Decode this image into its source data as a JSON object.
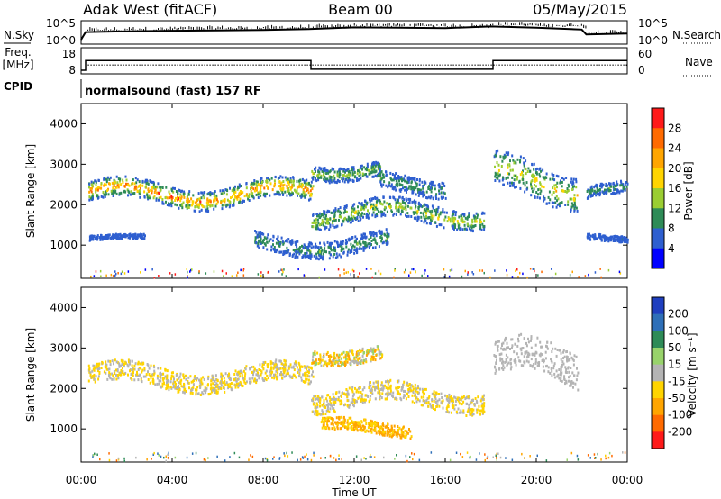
{
  "header": {
    "station": "Adak West (fitACF)",
    "beam": "Beam 00",
    "date": "05/May/2015"
  },
  "summary_panel": {
    "nsky_label": "N.Sky",
    "nsearch_label": "N.Search",
    "freq_label_line1": "Freq.",
    "freq_label_line2": "[MHz]",
    "nave_label": "Nave",
    "cpid_label": "CPID",
    "cpid_text": "normalsound (fast) 157 RF",
    "noise_ticks_left": [
      "10^5",
      "10^0"
    ],
    "noise_ticks_right": [
      "10^5",
      "10^0"
    ],
    "freq_ticks": [
      "18",
      "8"
    ],
    "nave_ticks": [
      "60",
      "0"
    ]
  },
  "colorbar_power": {
    "label": "Power [dB]",
    "ticks": [
      "28",
      "24",
      "20",
      "16",
      "12",
      "8",
      "4"
    ],
    "colors": [
      "#ff1a1a",
      "#ff6a00",
      "#ffa500",
      "#ffd400",
      "#9acd32",
      "#2e8b57",
      "#2e5fd0",
      "#0000ff"
    ]
  },
  "colorbar_velocity": {
    "label": "Velocity [m s⁻¹]",
    "ticks": [
      "200",
      "100",
      "50",
      "15",
      "-15",
      "-50",
      "-100",
      "-200"
    ],
    "colors": [
      "#1f3fbf",
      "#2e6fb8",
      "#2e8b57",
      "#98d36b",
      "#b4b4b4",
      "#ffd400",
      "#ffa500",
      "#ff6a00",
      "#ff1a1a"
    ]
  },
  "x_axis": {
    "label": "Time UT",
    "ticks": [
      "00:00",
      "04:00",
      "08:00",
      "12:00",
      "16:00",
      "20:00",
      "00:00"
    ]
  },
  "chart_data": [
    {
      "type": "line",
      "title": "Adak West (fitACF) Beam 00 05/May/2015",
      "panel": "noise / frequency / nave summary",
      "x_unit": "hours UT",
      "series": [
        {
          "name": "N.Sky",
          "x": [
            0,
            0.2,
            2,
            4,
            6,
            8,
            10,
            12,
            14,
            16,
            18,
            20,
            22,
            22.2,
            24
          ],
          "y": [
            1,
            300,
            500,
            800,
            1000,
            1500,
            3000,
            10000,
            8000,
            6000,
            20000,
            8000,
            2000,
            50,
            100
          ]
        },
        {
          "name": "Freq.",
          "x": [
            0,
            0.2,
            0.2,
            10.1,
            10.1,
            18.1,
            18.1,
            24
          ],
          "y": [
            8,
            8,
            14,
            14,
            8.6,
            8.6,
            14,
            14
          ]
        },
        {
          "name": "Nave",
          "x": [
            0,
            24
          ],
          "y": [
            19,
            19
          ]
        }
      ]
    },
    {
      "type": "heatmap",
      "title": "Power",
      "xlabel": "Time UT",
      "ylabel": "Slant Range [km]",
      "xlim": [
        0,
        24
      ],
      "ylim": [
        180,
        4500
      ],
      "yticks": [
        1000,
        2000,
        3000,
        4000
      ],
      "colorbar": {
        "label": "Power [dB]",
        "range": [
          0,
          30
        ]
      },
      "echo_regions": [
        {
          "x": [
            0.3,
            10.2
          ],
          "range_km": [
            1900,
            2700
          ],
          "power_db": [
            4,
            28
          ]
        },
        {
          "x": [
            10.1,
            13.2
          ],
          "range_km": [
            2600,
            3200
          ],
          "power_db": [
            4,
            16
          ]
        },
        {
          "x": [
            10.1,
            17.7
          ],
          "range_km": [
            1400,
            2200
          ],
          "power_db": [
            4,
            18
          ]
        },
        {
          "x": [
            13.0,
            16.0
          ],
          "range_km": [
            2200,
            2900
          ],
          "power_db": [
            4,
            12
          ]
        },
        {
          "x": [
            18.1,
            21.8
          ],
          "range_km": [
            1900,
            3300
          ],
          "power_db": [
            4,
            20
          ]
        },
        {
          "x": [
            22.2,
            24
          ],
          "range_km": [
            2100,
            2600
          ],
          "power_db": [
            4,
            12
          ]
        },
        {
          "x": [
            0.3,
            2.8
          ],
          "range_km": [
            1100,
            1300
          ],
          "power_db": [
            4,
            8
          ]
        },
        {
          "x": [
            22.2,
            24
          ],
          "range_km": [
            1050,
            1300
          ],
          "power_db": [
            4,
            8
          ]
        },
        {
          "x": [
            7.6,
            13.5
          ],
          "range_km": [
            700,
            1400
          ],
          "power_db": [
            4,
            12
          ]
        }
      ]
    },
    {
      "type": "heatmap",
      "title": "Velocity",
      "xlabel": "Time UT",
      "ylabel": "Slant Range [km]",
      "xlim": [
        0,
        24
      ],
      "ylim": [
        180,
        4500
      ],
      "yticks": [
        1000,
        2000,
        3000,
        4000
      ],
      "colorbar": {
        "label": "Velocity [m s⁻¹]",
        "range": [
          -200,
          200
        ]
      },
      "echo_regions": [
        {
          "x": [
            0.3,
            10.2
          ],
          "range_km": [
            1900,
            2700
          ],
          "velocity": [
            -50,
            15
          ]
        },
        {
          "x": [
            10.1,
            13.2
          ],
          "range_km": [
            2600,
            3200
          ],
          "velocity": [
            -100,
            50
          ]
        },
        {
          "x": [
            10.1,
            17.7
          ],
          "range_km": [
            1400,
            2200
          ],
          "velocity": [
            -50,
            15
          ]
        },
        {
          "x": [
            18.1,
            21.8
          ],
          "range_km": [
            1900,
            3300
          ],
          "velocity": [
            -15,
            15
          ]
        },
        {
          "x": [
            10.5,
            14.5
          ],
          "range_km": [
            800,
            1300
          ],
          "velocity": [
            -100,
            -15
          ]
        }
      ]
    }
  ]
}
